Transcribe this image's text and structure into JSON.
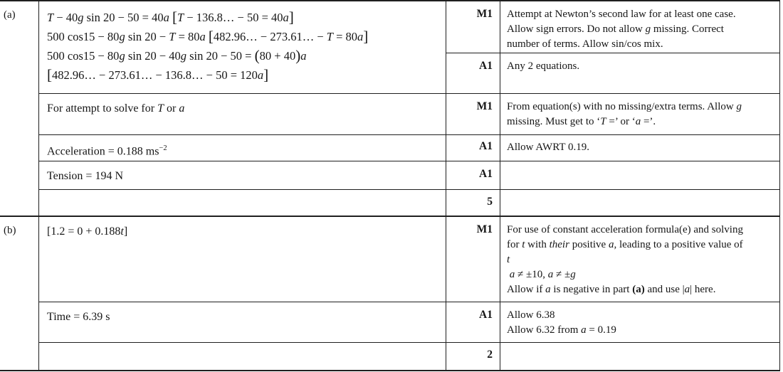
{
  "page": {
    "background": "#ffffff",
    "line_color": "#1f1f1f",
    "text_color": "#161616"
  },
  "parts": {
    "a": {
      "label": "(a)",
      "working_equations": [
        [
          {
            "t": "T",
            "s": "i"
          },
          " − 40",
          {
            "t": "g",
            "s": "i"
          },
          " sin 20 − 50 = 40",
          {
            "t": "a",
            "s": "i"
          },
          "   ",
          {
            "t": "[",
            "s": "br"
          },
          {
            "t": "T",
            "s": "i"
          },
          " − 136.8… − 50 = 40",
          {
            "t": "a",
            "s": "i"
          },
          {
            "t": "]",
            "s": "br"
          }
        ],
        [
          "500 cos15 − 80",
          {
            "t": "g",
            "s": "i"
          },
          " sin 20 − ",
          {
            "t": "T",
            "s": "i"
          },
          " = 80",
          {
            "t": "a",
            "s": "i"
          },
          "  ",
          {
            "t": "[",
            "s": "br"
          },
          "482.96… − 273.61… − ",
          {
            "t": "T",
            "s": "i"
          },
          " = 80",
          {
            "t": "a",
            "s": "i"
          },
          {
            "t": "]",
            "s": "br"
          }
        ],
        [
          "500 cos15 − 80",
          {
            "t": "g",
            "s": "i"
          },
          " sin 20 − 40",
          {
            "t": "g",
            "s": "i"
          },
          " sin 20 − 50 =  ",
          {
            "t": "(",
            "s": "br"
          },
          "80 + 40",
          {
            "t": ")",
            "s": "br"
          },
          {
            "t": "a",
            "s": "i"
          }
        ],
        [
          {
            "t": "[",
            "s": "br"
          },
          "482.96… − 273.61… − 136.8… − 50 = 120",
          {
            "t": "a",
            "s": "i"
          },
          {
            "t": "]",
            "s": "br"
          }
        ]
      ],
      "m1_mark": "M1",
      "m1_note": [
        [
          "Attempt at Newton’s second law for at least one case."
        ],
        [
          "Allow sign errors. Do not allow ",
          {
            "t": "g",
            "s": "i"
          },
          " missing. Correct"
        ],
        [
          "number of terms. Allow sin/cos mix."
        ]
      ],
      "a1_mark": "A1",
      "a1_note": [
        [
          "Any 2 equations."
        ]
      ],
      "solve": {
        "working": [
          [
            "For attempt to solve for ",
            {
              "t": "T",
              "s": "i"
            },
            " or ",
            {
              "t": "a",
              "s": "i"
            }
          ]
        ],
        "mark": "M1",
        "note": [
          [
            "From equation(s) with no missing/extra terms. Allow ",
            {
              "t": "g",
              "s": "i"
            }
          ],
          [
            "missing. Must get to ‘",
            {
              "t": "T",
              "s": "i"
            },
            " =’ or ‘",
            {
              "t": "a",
              "s": "i"
            },
            " =’."
          ]
        ]
      },
      "accel": {
        "working": [
          [
            "Acceleration = 0.188 ms",
            {
              "t": "−2",
              "s": "sup"
            }
          ]
        ],
        "mark": "A1",
        "note": [
          [
            "Allow AWRT 0.19."
          ]
        ]
      },
      "tension": {
        "working": [
          [
            "Tension = 194 N"
          ]
        ],
        "mark": "A1",
        "note": []
      },
      "total": "5"
    },
    "b": {
      "label": "(b)",
      "suvat": {
        "working": [
          [
            "[1.2 = 0 + 0.188",
            {
              "t": "t",
              "s": "i"
            },
            "]"
          ]
        ],
        "mark": "M1",
        "note": [
          [
            "For use of constant acceleration formula(e) and solving"
          ],
          [
            "for ",
            {
              "t": "t",
              "s": "i"
            },
            " with ",
            {
              "t": "their",
              "s": "i"
            },
            " positive ",
            {
              "t": "a",
              "s": "i"
            },
            ", leading to a positive value of"
          ],
          [
            {
              "t": "t",
              "s": "i"
            }
          ],
          [
            " ",
            {
              "t": "a",
              "s": "i"
            },
            " ≠ ±10, ",
            {
              "t": "a",
              "s": "i"
            },
            " ≠ ±",
            {
              "t": "g",
              "s": "i"
            }
          ],
          [
            "Allow if ",
            {
              "t": "a",
              "s": "i"
            },
            " is negative in part ",
            {
              "t": "(a)",
              "s": "b"
            },
            " and use |",
            {
              "t": "a",
              "s": "i"
            },
            "| here."
          ]
        ]
      },
      "time": {
        "working": [
          [
            "Time = 6.39 s"
          ]
        ],
        "mark": "A1",
        "note": [
          [
            "Allow 6.38"
          ],
          [
            "Allow 6.32 from ",
            {
              "t": "a",
              "s": "i"
            },
            " = 0.19"
          ]
        ]
      },
      "total": "2"
    }
  }
}
